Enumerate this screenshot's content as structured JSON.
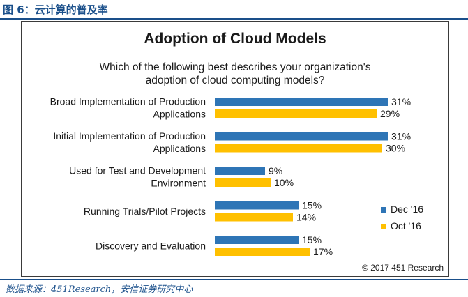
{
  "figure_label": "图 6：云计算的普及率",
  "source_note": "数据来源：451Research，安信证券研究中心",
  "chart_data": {
    "type": "bar",
    "orientation": "horizontal",
    "title": "Adoption of Cloud Models",
    "subtitle": [
      "Which of the following best describes your organization's",
      "adoption of cloud computing models?"
    ],
    "categories": [
      [
        "Broad Implementation of Production",
        "Applications"
      ],
      [
        "Initial Implementation of Production",
        "Applications"
      ],
      [
        "Used for Test and Development",
        "Environment"
      ],
      [
        "Running Trials/Pilot Projects"
      ],
      [
        "Discovery and Evaluation"
      ]
    ],
    "series": [
      {
        "name": "Dec '16",
        "color": "#2e75b6",
        "values": [
          31,
          31,
          9,
          15,
          15
        ]
      },
      {
        "name": "Oct '16",
        "color": "#ffc000",
        "values": [
          29,
          30,
          10,
          14,
          17
        ]
      }
    ],
    "value_suffix": "%",
    "legend_position": "right",
    "grid": false,
    "copyright": "© 2017 451 Research"
  }
}
